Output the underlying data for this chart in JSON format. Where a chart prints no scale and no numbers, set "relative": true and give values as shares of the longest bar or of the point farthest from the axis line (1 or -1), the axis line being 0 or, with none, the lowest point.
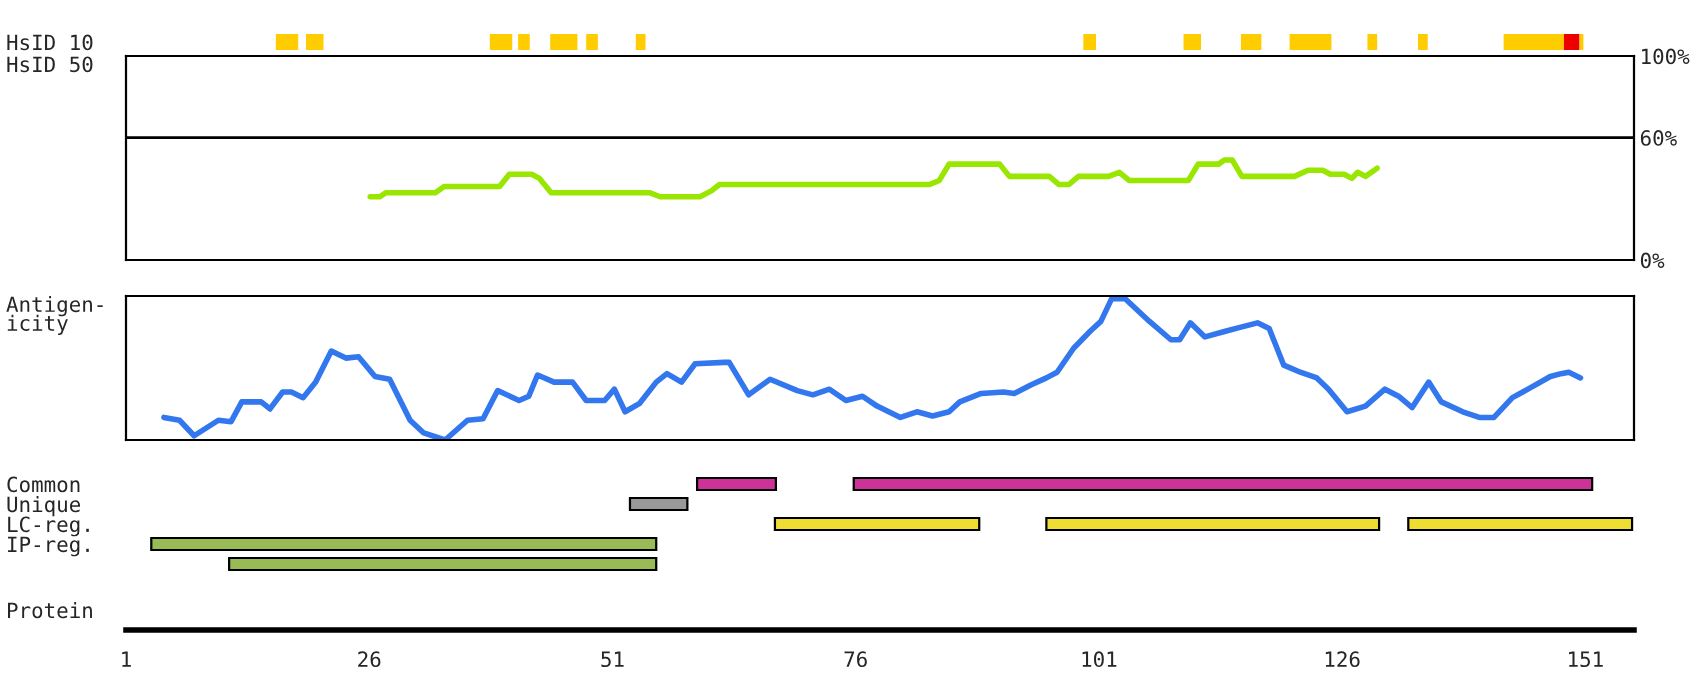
{
  "chart_data": [
    {
      "type": "bar",
      "orientation": "horizontal",
      "categories": [
        "HsID 10"
      ],
      "xlim": [
        1,
        156
      ],
      "tick_labels": "y",
      "series": [
        {
          "color": "#ffcc00",
          "values": [
            2.3
          ],
          "base": [
            16.4
          ]
        },
        {
          "color": "#ffcc00",
          "values": [
            1.8
          ],
          "base": [
            19.5
          ]
        },
        {
          "color": "#ffcc00",
          "values": [
            2.3
          ],
          "base": [
            38.4
          ]
        },
        {
          "color": "#ffcc00",
          "values": [
            1.2
          ],
          "base": [
            41.3
          ]
        },
        {
          "color": "#ffcc00",
          "values": [
            2.8
          ],
          "base": [
            44.6
          ]
        },
        {
          "color": "#ffcc00",
          "values": [
            1.2
          ],
          "base": [
            48.3
          ]
        },
        {
          "color": "#ffcc00",
          "values": [
            1.0
          ],
          "base": [
            53.4
          ]
        },
        {
          "color": "#ffcc00",
          "values": [
            1.3
          ],
          "base": [
            99.4
          ]
        },
        {
          "color": "#ffcc00",
          "values": [
            1.8
          ],
          "base": [
            109.7
          ]
        },
        {
          "color": "#ffcc00",
          "values": [
            2.1
          ],
          "base": [
            115.6
          ]
        },
        {
          "color": "#ffcc00",
          "values": [
            4.3
          ],
          "base": [
            120.6
          ]
        },
        {
          "color": "#ffcc00",
          "values": [
            1.0
          ],
          "base": [
            128.6
          ]
        },
        {
          "color": "#ffcc00",
          "values": [
            1.0
          ],
          "base": [
            133.8
          ]
        },
        {
          "color": "#ffcc00",
          "values": [
            6.2
          ],
          "base": [
            142.6
          ]
        },
        {
          "color": "#ee0000",
          "values": [
            1.6
          ],
          "base": [
            148.8
          ]
        },
        {
          "color": "#ffcc00",
          "values": [
            0.4
          ],
          "base": [
            150.4
          ]
        }
      ]
    },
    {
      "type": "line",
      "ylabel": "HsID 50",
      "xlim": [
        1,
        156
      ],
      "ylim": [
        0,
        100
      ],
      "yticks": [
        {
          "value": 0,
          "label": "0%"
        },
        {
          "value": 60,
          "label": "60%"
        },
        {
          "value": 100,
          "label": "100%"
        }
      ],
      "tick_labels": "y",
      "ref_lines": [
        {
          "axis": "y",
          "value": 60,
          "color": "#000000"
        }
      ],
      "series": [
        {
          "color": "#99e600",
          "x": [
            26.1,
            27.1,
            27.7,
            32.8,
            33.7,
            39.4,
            40.4,
            42.7,
            43.5,
            44.7,
            54.8,
            55.9,
            60.0,
            61.2,
            62.0,
            83.6,
            84.6,
            85.6,
            90.8,
            91.8,
            95.9,
            96.9,
            97.9,
            98.9,
            102.0,
            103.1,
            104.1,
            104.1,
            110.2,
            111.2,
            113.3,
            113.9,
            114.7,
            115.7,
            121.1,
            122.5,
            124.0,
            124.8,
            126.2,
            127.0,
            127.6,
            128.4,
            129.6
          ],
          "values": [
            31,
            31,
            33,
            33,
            36,
            36,
            42,
            42,
            40,
            33,
            33,
            31,
            31,
            34,
            37,
            37,
            39,
            47,
            47,
            41,
            41,
            37,
            37,
            41,
            41,
            43,
            39,
            39,
            39,
            47,
            47,
            49,
            49,
            41,
            41,
            44,
            44,
            42,
            42,
            40,
            43,
            41,
            45
          ]
        }
      ]
    },
    {
      "type": "line",
      "ylabel": "Antigen-\nicity",
      "relative": true,
      "xlim": [
        1,
        156
      ],
      "tick_labels": false,
      "series": [
        {
          "color": "#3377ee",
          "x": [
            4.9,
            6.5,
            8.0,
            10.5,
            11.8,
            12.9,
            14.9,
            15.8,
            17.1,
            18.0,
            19.2,
            20.5,
            22.1,
            23.6,
            24.9,
            26.6,
            28.1,
            30.2,
            31.6,
            33.8,
            36.1,
            37.7,
            39.2,
            41.4,
            42.4,
            43.3,
            45.0,
            46.9,
            48.3,
            50.2,
            51.2,
            52.3,
            53.8,
            55.5,
            56.6,
            58.1,
            59.5,
            62.5,
            63.0,
            65.0,
            67.2,
            70.0,
            71.6,
            73.3,
            75.0,
            76.7,
            78.2,
            80.6,
            82.3,
            83.9,
            85.6,
            86.7,
            88.9,
            91.2,
            92.3,
            94.0,
            95.6,
            96.7,
            98.4,
            100.1,
            101.2,
            102.3,
            103.7,
            106.2,
            108.4,
            109.3,
            110.4,
            111.9,
            114.0,
            115.6,
            117.3,
            118.5,
            120.0,
            121.7,
            123.4,
            124.6,
            126.5,
            128.4,
            130.4,
            131.8,
            133.2,
            134.9,
            136.2,
            138.4,
            140.1,
            141.6,
            143.5,
            145.1,
            147.4,
            148.5,
            149.3,
            150.5
          ],
          "values": [
            0.16,
            0.14,
            0.03,
            0.14,
            0.13,
            0.27,
            0.27,
            0.22,
            0.34,
            0.34,
            0.3,
            0.41,
            0.63,
            0.58,
            0.59,
            0.45,
            0.43,
            0.14,
            0.05,
            0,
            0.14,
            0.15,
            0.35,
            0.28,
            0.31,
            0.46,
            0.41,
            0.41,
            0.28,
            0.28,
            0.36,
            0.2,
            0.26,
            0.41,
            0.47,
            0.41,
            0.54,
            0.55,
            0.55,
            0.32,
            0.43,
            0.35,
            0.32,
            0.36,
            0.28,
            0.31,
            0.24,
            0.16,
            0.2,
            0.17,
            0.2,
            0.27,
            0.33,
            0.34,
            0.33,
            0.39,
            0.44,
            0.48,
            0.65,
            0.77,
            0.84,
            1,
            1,
            0.84,
            0.71,
            0.71,
            0.83,
            0.73,
            0.77,
            0.8,
            0.83,
            0.79,
            0.53,
            0.48,
            0.44,
            0.36,
            0.2,
            0.24,
            0.36,
            0.31,
            0.23,
            0.41,
            0.27,
            0.2,
            0.16,
            0.16,
            0.3,
            0.36,
            0.45,
            0.47,
            0.48,
            0.44
          ]
        }
      ]
    },
    {
      "type": "bar",
      "orientation": "horizontal",
      "categories": [
        "Common",
        "Unique",
        "LC-reg.",
        "IP-reg.",
        null
      ],
      "xlabel": "Protein",
      "xlim": [
        1,
        156
      ],
      "xticks": [
        1,
        26,
        51,
        76,
        101,
        126,
        151
      ],
      "series": [
        {
          "color": "#cc3399",
          "values": [
            8.1,
            null,
            null,
            null,
            null
          ],
          "base": [
            59.7,
            null,
            null,
            null,
            null
          ]
        },
        {
          "color": "#cc3399",
          "values": [
            75.9,
            null,
            null,
            null,
            null
          ],
          "base": [
            75.8,
            null,
            null,
            null,
            null
          ]
        },
        {
          "color": "#999999",
          "values": [
            null,
            5.9,
            null,
            null,
            null
          ],
          "base": [
            null,
            52.8,
            null,
            null,
            null
          ]
        },
        {
          "color": "#eedd33",
          "values": [
            null,
            null,
            21.0,
            null,
            null
          ],
          "base": [
            null,
            null,
            67.7,
            null,
            null
          ]
        },
        {
          "color": "#eedd33",
          "values": [
            null,
            null,
            34.2,
            null,
            null
          ],
          "base": [
            null,
            null,
            95.6,
            null,
            null
          ]
        },
        {
          "color": "#eedd33",
          "values": [
            null,
            null,
            23.0,
            null,
            null
          ],
          "base": [
            null,
            null,
            132.8,
            null,
            null
          ]
        },
        {
          "color": "#99bb55",
          "values": [
            null,
            null,
            null,
            51.9,
            43.9
          ],
          "base": [
            null,
            null,
            null,
            3.6,
            11.6
          ]
        }
      ]
    }
  ]
}
